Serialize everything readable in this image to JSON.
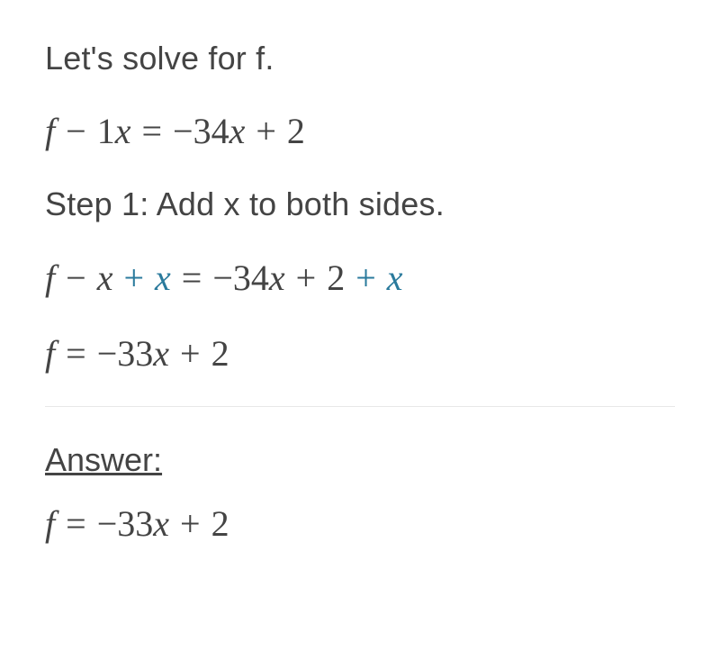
{
  "intro": "Let's solve for f.",
  "eq_original": {
    "lhs_f": "f",
    "lhs_minus": " − ",
    "lhs_coef": "1",
    "lhs_x": "x",
    "eq": " = ",
    "rhs_neg": "−",
    "rhs_coef": "34",
    "rhs_x": "x",
    "rhs_plus": " + ",
    "rhs_const": "2"
  },
  "step1_label": "Step 1: Add x to both sides.",
  "eq_step": {
    "lhs_f": "f",
    "lhs_minus": " − ",
    "lhs_x1": "x",
    "lhs_plus": " + ",
    "lhs_x2": "x",
    "eq": " = ",
    "rhs_neg": "−",
    "rhs_coef": "34",
    "rhs_x": "x",
    "rhs_plus1": " + ",
    "rhs_const": "2",
    "rhs_plus2": " + ",
    "rhs_x2": "x"
  },
  "eq_result": {
    "lhs_f": "f",
    "eq": " = ",
    "rhs_neg": "−",
    "rhs_coef": "33",
    "rhs_x": "x",
    "rhs_plus": " + ",
    "rhs_const": "2"
  },
  "answer_label": "Answer:",
  "eq_answer": {
    "lhs_f": "f",
    "eq": " = ",
    "rhs_neg": "−",
    "rhs_coef": "33",
    "rhs_x": "x",
    "rhs_plus": " + ",
    "rhs_const": "2"
  },
  "colors": {
    "text": "#444444",
    "highlight": "#2a7a9c",
    "divider": "#e8e8e8",
    "background": "#ffffff"
  },
  "typography": {
    "body_fontsize": 36,
    "math_fontsize": 40,
    "body_weight": 300,
    "math_weight": 400
  }
}
